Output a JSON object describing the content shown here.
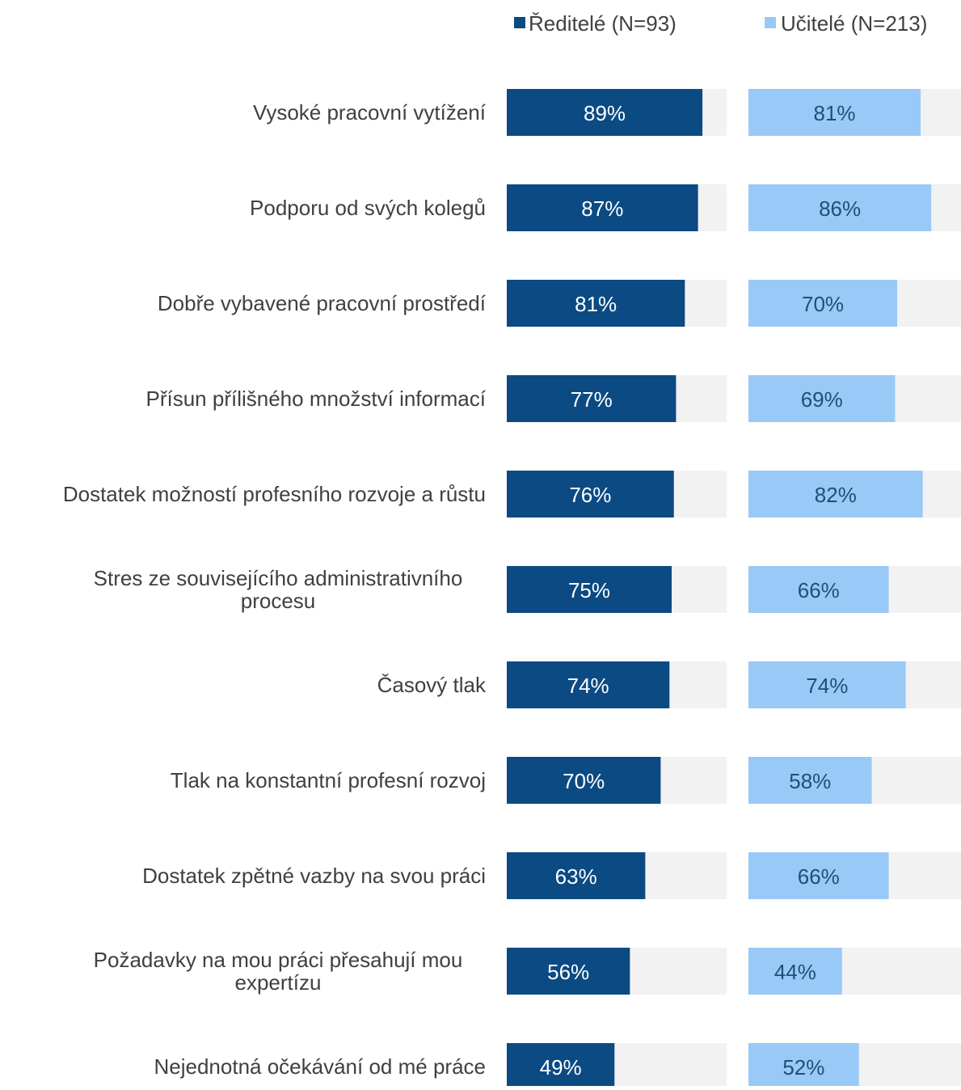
{
  "chart_data": {
    "type": "bar",
    "orientation": "horizontal",
    "layout": "two panels side by side, one per series, each with a 0-100% background track",
    "legend_position": "top-right",
    "grid": false,
    "xlim": [
      0,
      100
    ],
    "value_format": "{v}%",
    "colors": {
      "track": "#f2f2f2",
      "category_label": "#404040"
    },
    "categories": [
      [
        "Vysoké pracovní vytížení"
      ],
      [
        "Podporu od svých kolegů"
      ],
      [
        "Dobře vybavené pracovní prostředí"
      ],
      [
        "Přísun přílišného množství informací"
      ],
      [
        "Dostatek možností profesního rozvoje a růstu"
      ],
      [
        "Stres ze souvisejícího administrativního",
        "procesu"
      ],
      [
        "Časový tlak"
      ],
      [
        "Tlak na konstantní profesní rozvoj"
      ],
      [
        "Dostatek zpětné vazby na svou práci"
      ],
      [
        "Požadavky na mou práci přesahují mou",
        "expertízu"
      ],
      [
        "Nejednotná očekávání od mé práce"
      ]
    ],
    "series": [
      {
        "name": "Ředitelé (N=93)",
        "color": "#0b4a83",
        "label_color": "#ffffff",
        "values": [
          89,
          87,
          81,
          77,
          76,
          75,
          74,
          70,
          63,
          56,
          49
        ]
      },
      {
        "name": "Učitelé (N=213)",
        "color": "#99c9f6",
        "label_color": "#1f4e79",
        "values": [
          81,
          86,
          70,
          69,
          82,
          66,
          74,
          58,
          66,
          44,
          52
        ]
      }
    ]
  }
}
